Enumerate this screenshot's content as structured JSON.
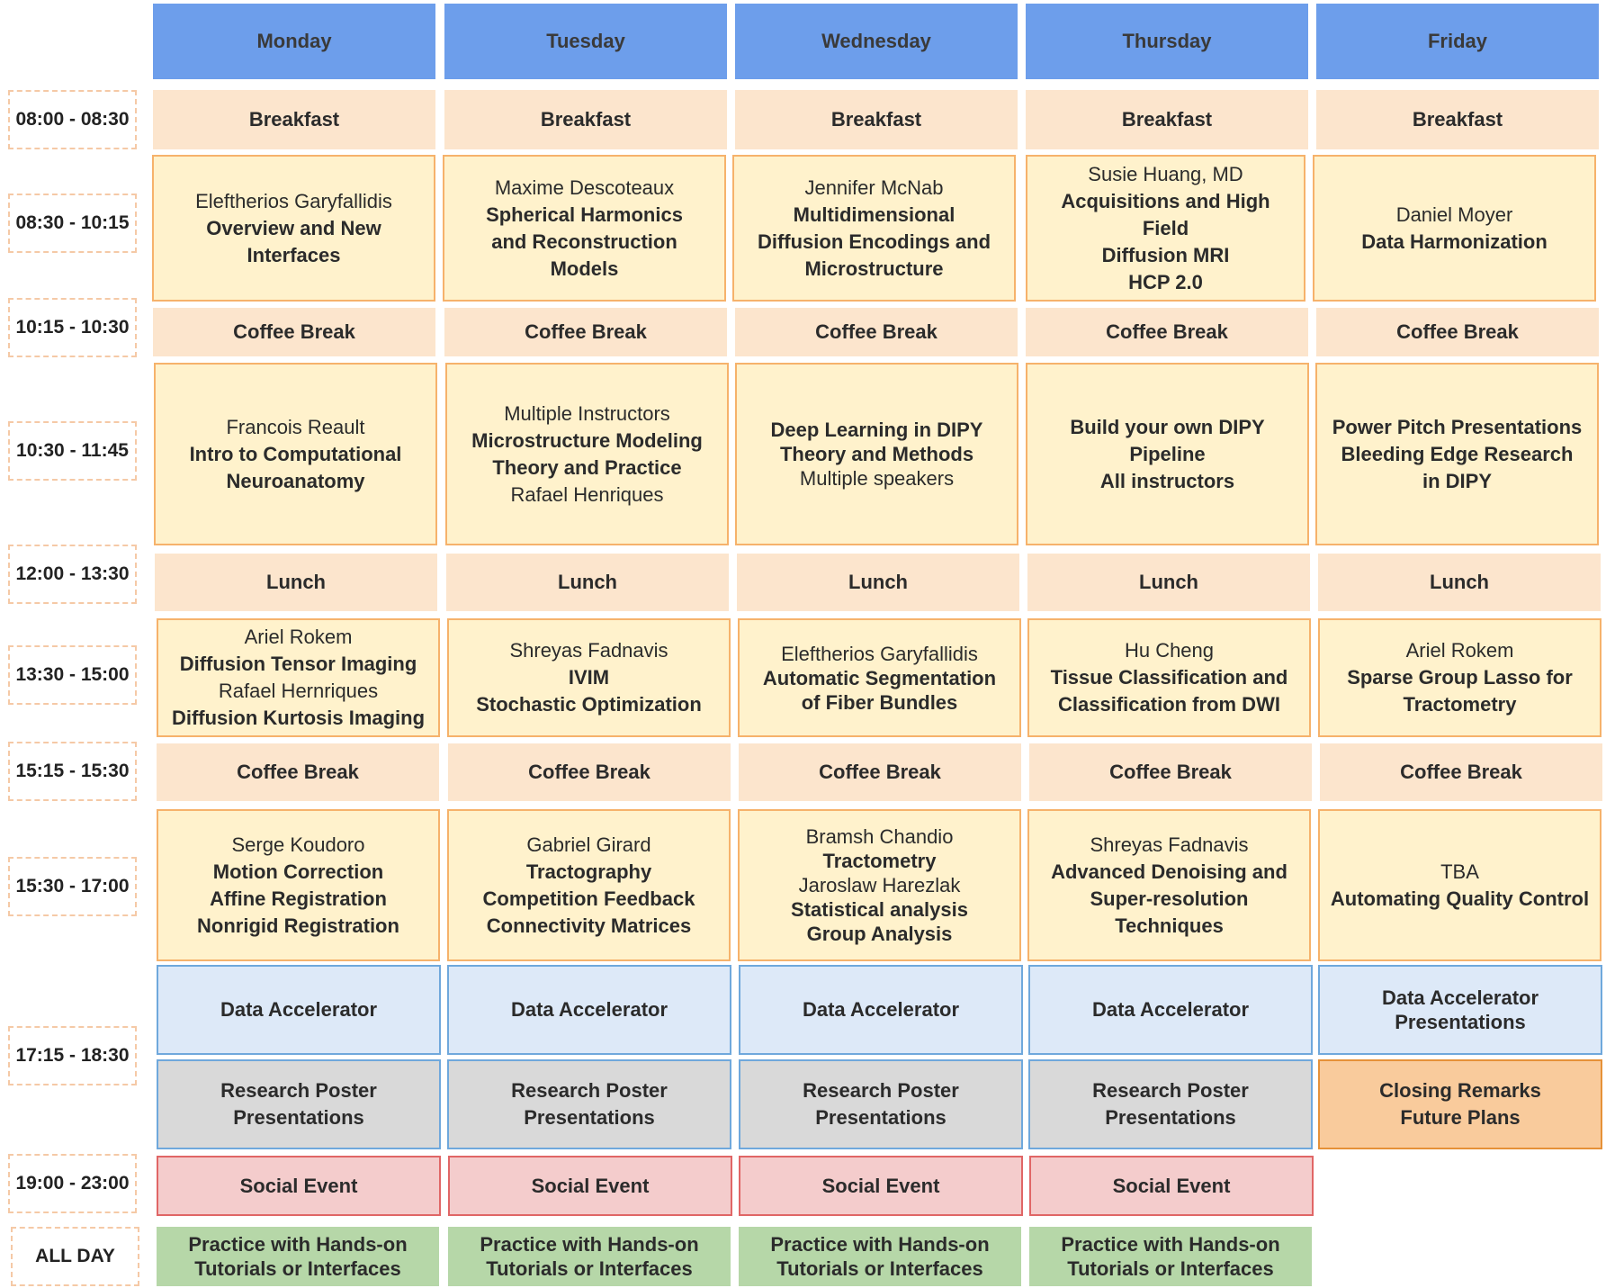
{
  "days": [
    "Monday",
    "Tuesday",
    "Wednesday",
    "Thursday",
    "Friday"
  ],
  "times": [
    "08:00 - 08:30",
    "08:30 - 10:15",
    "10:15 - 10:30",
    "10:30 - 11:45",
    "12:00 - 13:30",
    "13:30 - 15:00",
    "15:15 - 15:30",
    "15:30 - 17:00",
    "17:15 - 18:30",
    "19:00 - 23:00",
    "ALL DAY"
  ],
  "breaks": {
    "breakfast": "Breakfast",
    "coffee": "Coffee Break",
    "lunch": "Lunch"
  },
  "session1": [
    {
      "lines": [
        {
          "t": "Eleftherios Garyfallidis",
          "b": false
        },
        {
          "t": "Overview and New",
          "b": true
        },
        {
          "t": "Interfaces",
          "b": true
        }
      ]
    },
    {
      "lines": [
        {
          "t": "Maxime Descoteaux",
          "b": false
        },
        {
          "t": "Spherical Harmonics",
          "b": true
        },
        {
          "t": "and Reconstruction",
          "b": true
        },
        {
          "t": "Models",
          "b": true
        }
      ]
    },
    {
      "lines": [
        {
          "t": "Jennifer McNab",
          "b": false
        },
        {
          "t": "Multidimensional",
          "b": true
        },
        {
          "t": "Diffusion Encodings and",
          "b": true
        },
        {
          "t": "Microstructure",
          "b": true
        }
      ]
    },
    {
      "lines": [
        {
          "t": "Susie Huang, MD",
          "b": false
        },
        {
          "t": "Acquisitions and High Field",
          "b": true
        },
        {
          "t": "Diffusion MRI",
          "b": true
        },
        {
          "t": "HCP 2.0",
          "b": true
        }
      ]
    },
    {
      "lines": [
        {
          "t": "Daniel Moyer",
          "b": false
        },
        {
          "t": "Data Harmonization",
          "b": true
        }
      ]
    }
  ],
  "session2": [
    {
      "lines": [
        {
          "t": "Francois Reault",
          "b": false
        },
        {
          "t": "Intro to Computational",
          "b": true
        },
        {
          "t": "Neuroanatomy",
          "b": true
        }
      ]
    },
    {
      "lines": [
        {
          "t": "Multiple Instructors",
          "b": false
        },
        {
          "t": "Microstructure Modeling",
          "b": true
        },
        {
          "t": "Theory and Practice",
          "b": true
        },
        {
          "t": "Rafael Henriques",
          "b": false
        }
      ]
    },
    {
      "lines": [
        {
          "t": "Deep Learning in DIPY",
          "b": true
        },
        {
          "t": "Theory and Methods",
          "b": true
        },
        {
          "t": "Multiple speakers",
          "b": false
        }
      ]
    },
    {
      "lines": [
        {
          "t": "Build your own DIPY",
          "b": true
        },
        {
          "t": "Pipeline",
          "b": true
        },
        {
          "t": "All instructors",
          "b": true
        }
      ]
    },
    {
      "lines": [
        {
          "t": "Power Pitch Presentations",
          "b": true
        },
        {
          "t": "Bleeding Edge Research",
          "b": true
        },
        {
          "t": "in DIPY",
          "b": true
        }
      ]
    }
  ],
  "session3": [
    {
      "lines": [
        {
          "t": "Ariel Rokem",
          "b": false
        },
        {
          "t": "Diffusion Tensor Imaging",
          "b": true
        },
        {
          "t": "Rafael Hernriques",
          "b": false
        },
        {
          "t": "Diffusion Kurtosis Imaging",
          "b": true
        }
      ]
    },
    {
      "lines": [
        {
          "t": "Shreyas Fadnavis",
          "b": false
        },
        {
          "t": "IVIM",
          "b": true
        },
        {
          "t": "Stochastic Optimization",
          "b": true
        }
      ]
    },
    {
      "lines": [
        {
          "t": "Eleftherios Garyfallidis",
          "b": false
        },
        {
          "t": "Automatic Segmentation",
          "b": true
        },
        {
          "t": "of Fiber Bundles",
          "b": true
        }
      ]
    },
    {
      "lines": [
        {
          "t": "Hu Cheng",
          "b": false
        },
        {
          "t": "Tissue Classification and",
          "b": true
        },
        {
          "t": "Classification from DWI",
          "b": true
        }
      ]
    },
    {
      "lines": [
        {
          "t": "Ariel Rokem",
          "b": false
        },
        {
          "t": "Sparse Group Lasso for",
          "b": true
        },
        {
          "t": "Tractometry",
          "b": true
        }
      ]
    }
  ],
  "session4": [
    {
      "lines": [
        {
          "t": "Serge Koudoro",
          "b": false
        },
        {
          "t": "Motion Correction",
          "b": true
        },
        {
          "t": "Affine Registration",
          "b": true
        },
        {
          "t": "Nonrigid Registration",
          "b": true
        }
      ]
    },
    {
      "lines": [
        {
          "t": "Gabriel Girard",
          "b": false
        },
        {
          "t": "Tractography",
          "b": true
        },
        {
          "t": "Competition Feedback",
          "b": true
        },
        {
          "t": "Connectivity Matrices",
          "b": true
        }
      ]
    },
    {
      "lines": [
        {
          "t": "Bramsh Chandio",
          "b": false
        },
        {
          "t": "Tractometry",
          "b": true
        },
        {
          "t": "Jaroslaw Harezlak",
          "b": false
        },
        {
          "t": "Statistical analysis",
          "b": true
        },
        {
          "t": "Group Analysis",
          "b": true
        }
      ]
    },
    {
      "lines": [
        {
          "t": "Shreyas Fadnavis",
          "b": false
        },
        {
          "t": "Advanced Denoising and",
          "b": true
        },
        {
          "t": "Super-resolution",
          "b": true
        },
        {
          "t": "Techniques",
          "b": true
        }
      ]
    },
    {
      "lines": [
        {
          "t": "TBA",
          "b": false
        },
        {
          "t": "Automating Quality Control",
          "b": true
        }
      ]
    }
  ],
  "evening": {
    "data_accelerator": "Data Accelerator",
    "friday_da": [
      "Data Accelerator",
      "Presentations"
    ],
    "poster": [
      "Research Poster",
      "Presentations"
    ],
    "closing": [
      "Closing Remarks",
      "Future Plans"
    ],
    "social": "Social Event",
    "practice": [
      "Practice with Hands-on",
      "Tutorials or Interfaces"
    ]
  },
  "colors": {
    "header": "#6d9eeb",
    "meal": "#fce5cd",
    "talk": "#fff2cc",
    "talk_border": "#f6b26b",
    "data_accelerator": "#dde9f8",
    "poster": "#d9d9d9",
    "closing": "#f9cb9c",
    "social": "#f4cccc",
    "practice": "#b6d7a8"
  }
}
